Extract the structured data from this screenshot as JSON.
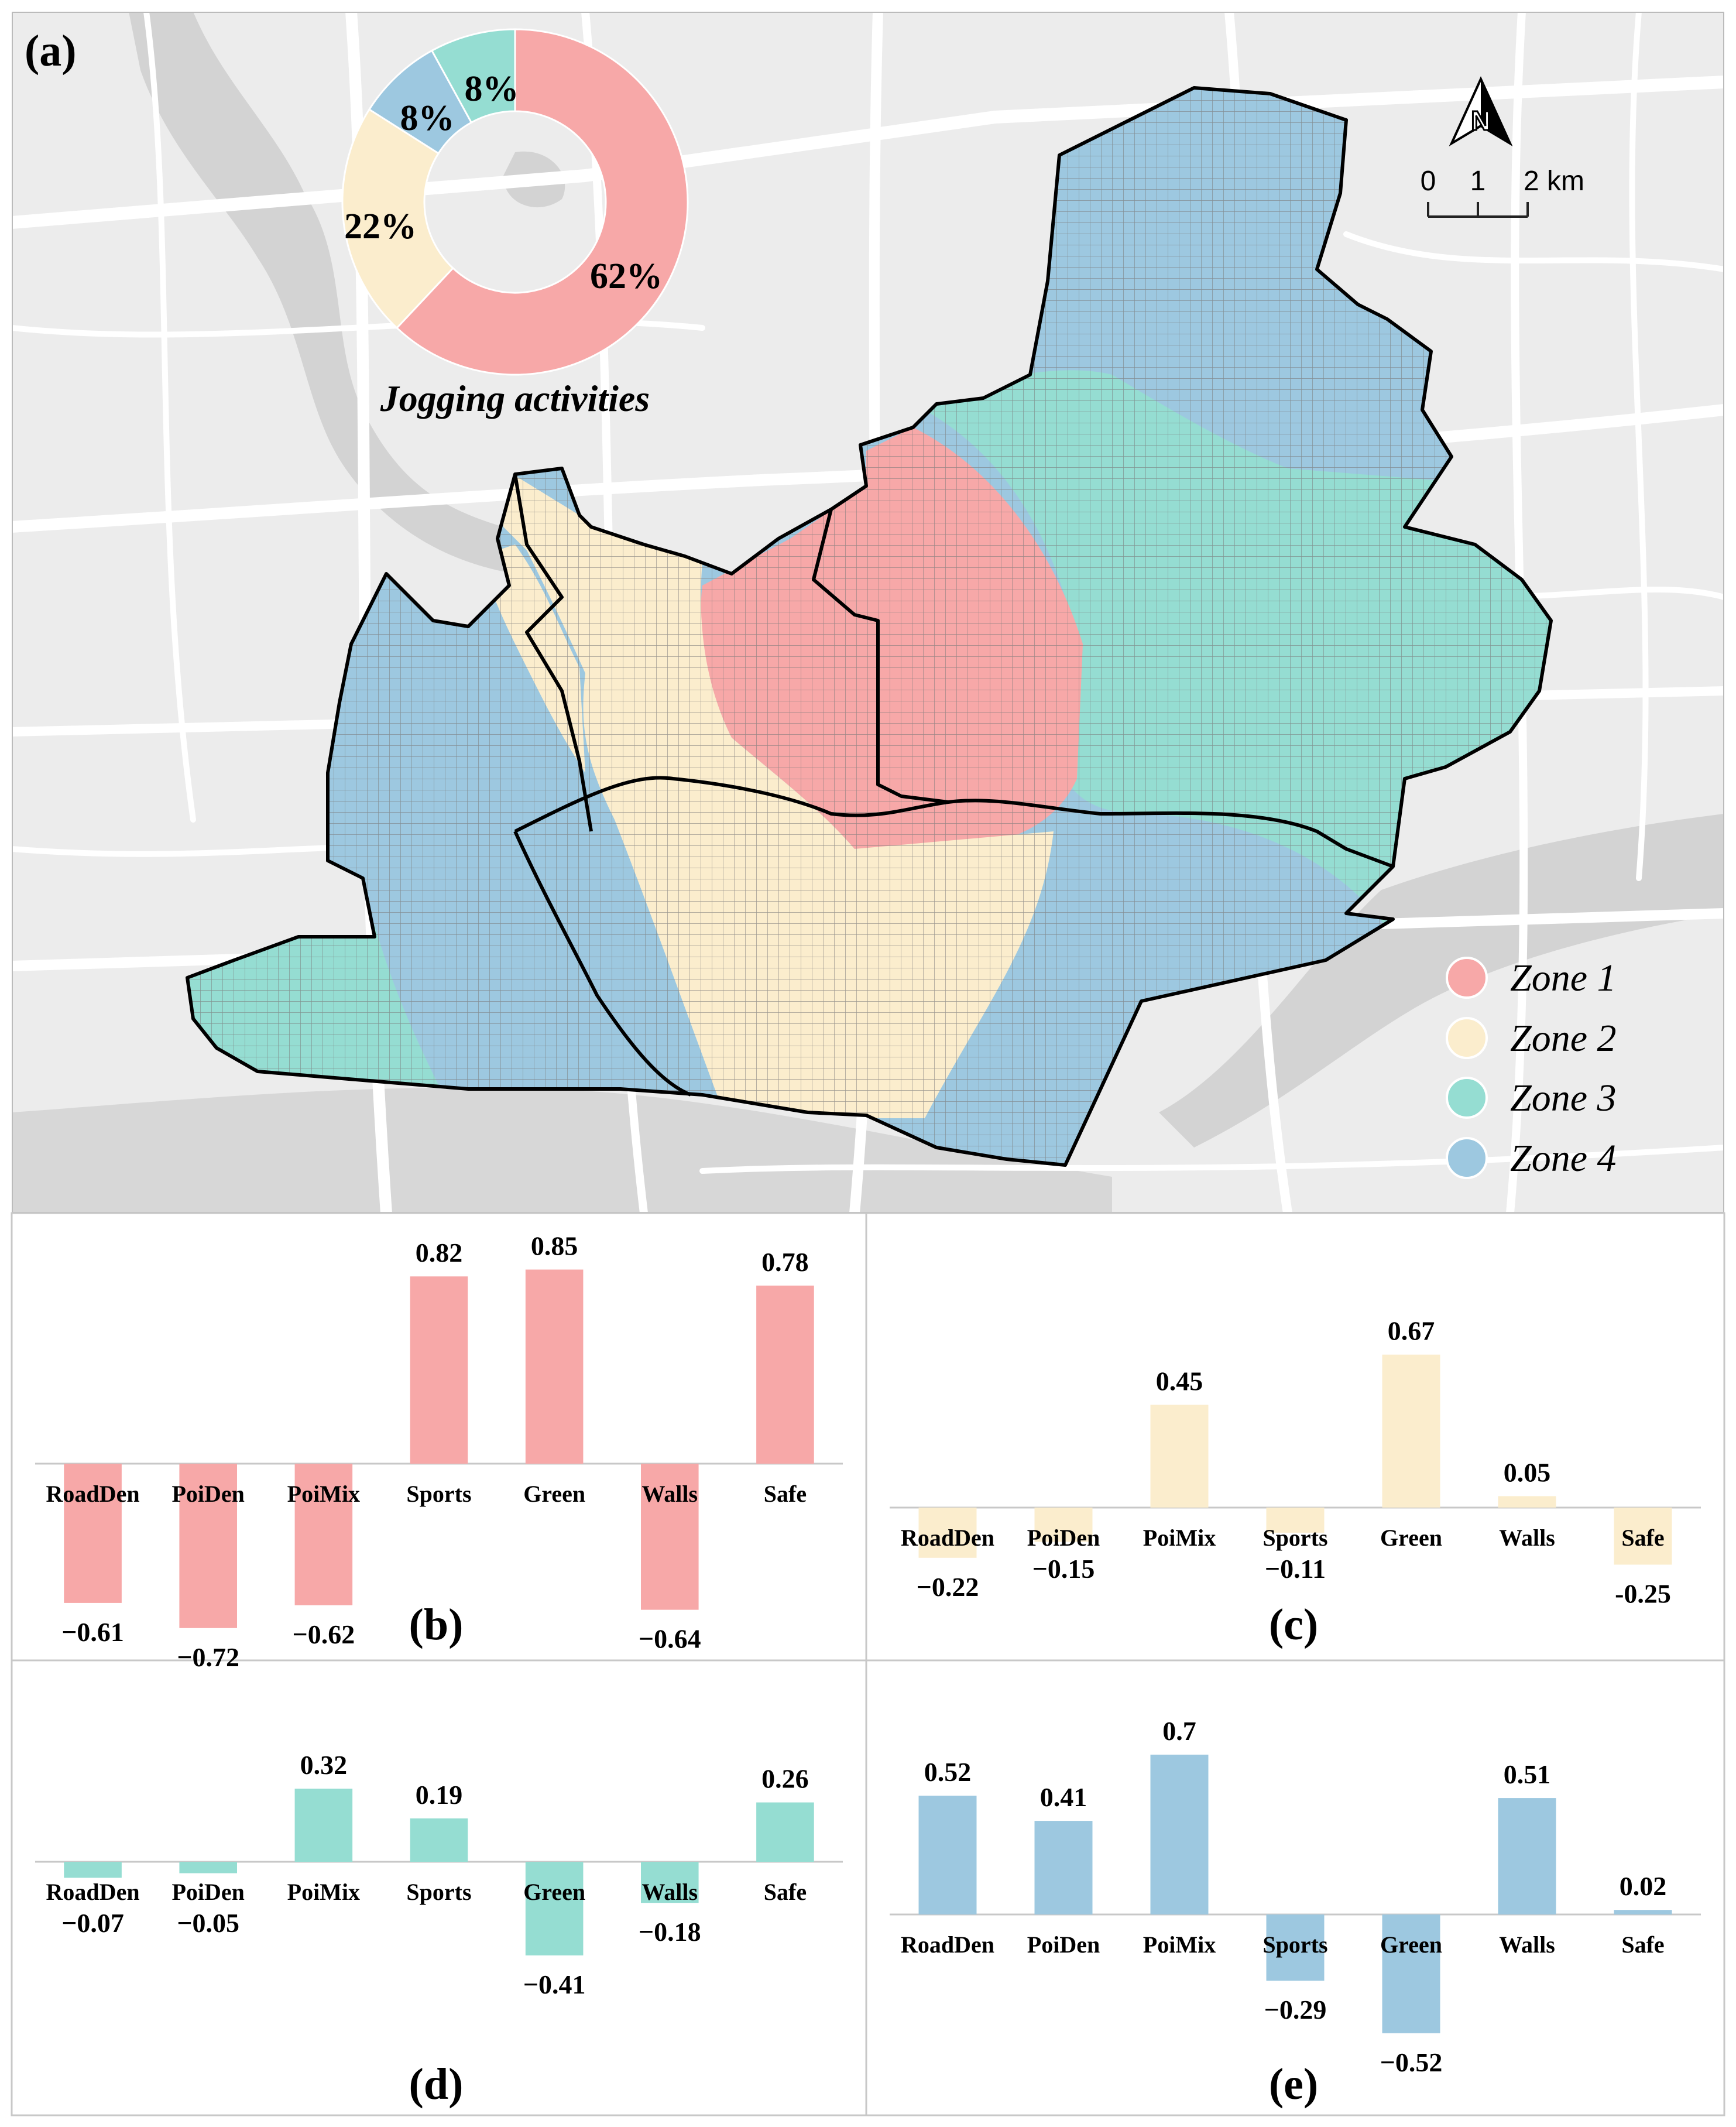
{
  "map": {
    "panel_label": "(a)",
    "scale_bar": {
      "ticks": [
        "0",
        "1",
        "2 km"
      ]
    },
    "north_arrow": {
      "letter": "N"
    },
    "legend": [
      {
        "label": "Zone 1",
        "color": "#f7a8a8"
      },
      {
        "label": "Zone 2",
        "color": "#fbedcd"
      },
      {
        "label": "Zone 3",
        "color": "#95ddd2"
      },
      {
        "label": "Zone 4",
        "color": "#9dc8e0"
      }
    ],
    "colors": {
      "background": "#ececec",
      "road": "#ffffff",
      "water": "#d3d3d3",
      "boundary": "#000000",
      "grid": "#7a7a7a"
    }
  },
  "chart_data": [
    {
      "type": "pie",
      "title": "Jogging activities",
      "categories": [
        "Zone 1",
        "Zone 2",
        "Zone 4",
        "Zone 3"
      ],
      "values": [
        62,
        22,
        8,
        8
      ],
      "labels": [
        "62%",
        "22%",
        "8%",
        "8%"
      ],
      "colors": [
        "#f7a8a8",
        "#fbedcd",
        "#9dc8e0",
        "#95ddd2"
      ]
    },
    {
      "type": "bar",
      "panel_label": "(b)",
      "color": "#f7a8a8",
      "categories": [
        "RoadDen",
        "PoiDen",
        "PoiMix",
        "Sports",
        "Green",
        "Walls",
        "Safe"
      ],
      "values": [
        -0.61,
        -0.72,
        -0.62,
        0.82,
        0.85,
        -0.64,
        0.78
      ],
      "value_labels": [
        "−0.61",
        "−0.72",
        "−0.62",
        "0.82",
        "0.85",
        "−0.64",
        "0.78"
      ]
    },
    {
      "type": "bar",
      "panel_label": "(c)",
      "color": "#fbedcd",
      "categories": [
        "RoadDen",
        "PoiDen",
        "PoiMix",
        "Sports",
        "Green",
        "Walls",
        "Safe"
      ],
      "values": [
        -0.22,
        -0.15,
        0.45,
        -0.11,
        0.67,
        0.05,
        -0.25
      ],
      "value_labels": [
        "−0.22",
        "−0.15",
        "0.45",
        "−0.11",
        "0.67",
        "0.05",
        "-0.25"
      ]
    },
    {
      "type": "bar",
      "panel_label": "(d)",
      "color": "#95ddd2",
      "categories": [
        "RoadDen",
        "PoiDen",
        "PoiMix",
        "Sports",
        "Green",
        "Walls",
        "Safe"
      ],
      "values": [
        -0.07,
        -0.05,
        0.32,
        0.19,
        -0.41,
        -0.18,
        0.26
      ],
      "value_labels": [
        "−0.07",
        "−0.05",
        "0.32",
        "0.19",
        "−0.41",
        "−0.18",
        "0.26"
      ]
    },
    {
      "type": "bar",
      "panel_label": "(e)",
      "color": "#9dc8e0",
      "categories": [
        "RoadDen",
        "PoiDen",
        "PoiMix",
        "Sports",
        "Green",
        "Walls",
        "Safe"
      ],
      "values": [
        0.52,
        0.41,
        0.7,
        -0.29,
        -0.52,
        0.51,
        0.02
      ],
      "value_labels": [
        "0.52",
        "0.41",
        "0.7",
        "−0.29",
        "−0.52",
        "0.51",
        "0.02"
      ]
    }
  ]
}
